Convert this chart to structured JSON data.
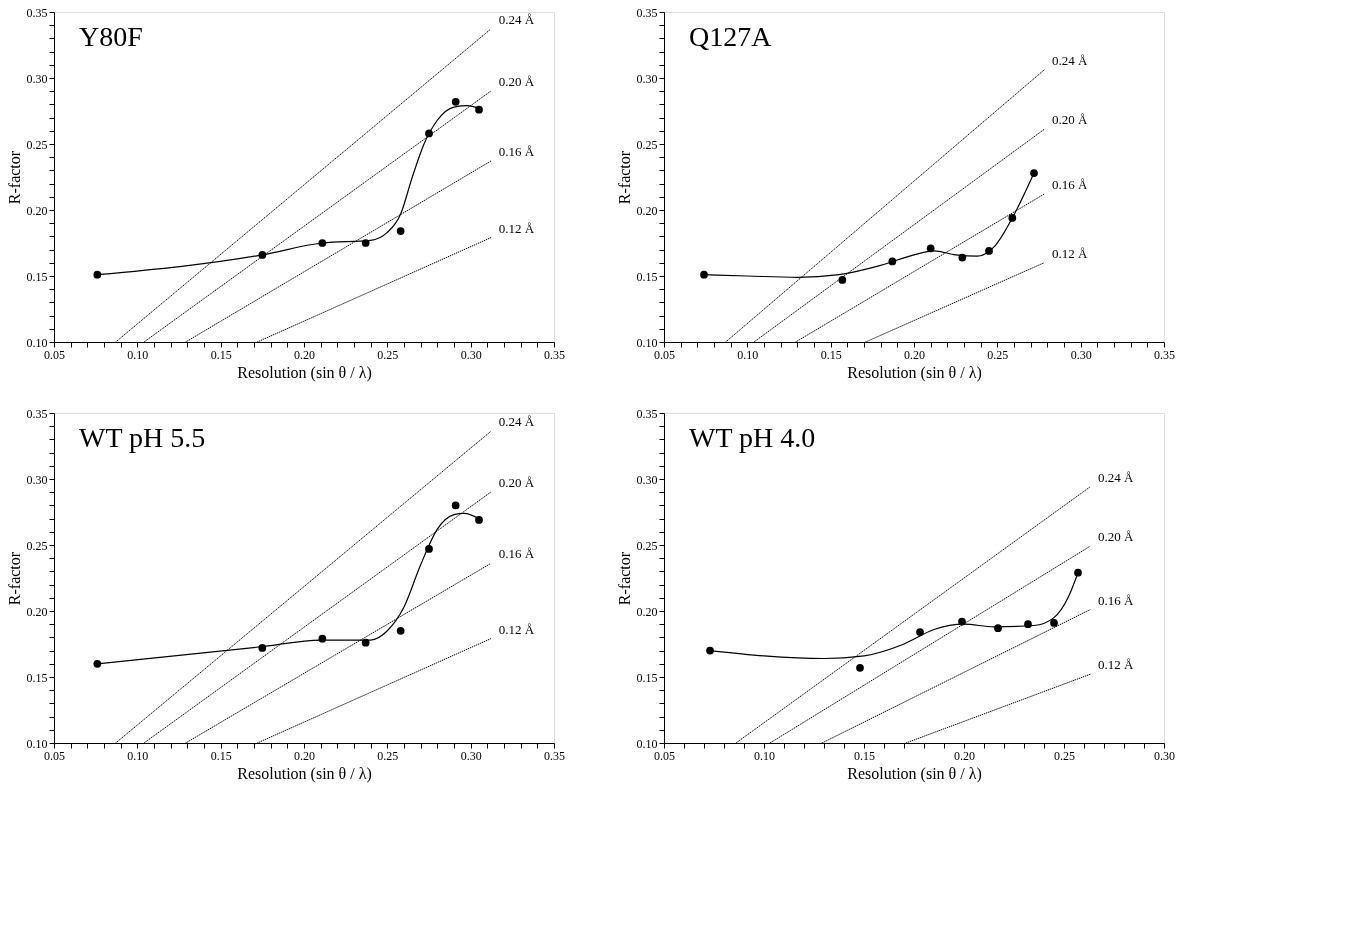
{
  "chart_data": [
    {
      "type": "scatter",
      "title": "Y80F",
      "xlabel": "Resolution (sin θ / λ)",
      "ylabel": "R-factor",
      "xlim": [
        0.05,
        0.35
      ],
      "ylim": [
        0.1,
        0.35
      ],
      "grid": false,
      "marker": "circle",
      "xticks": [
        {
          "value": 0.05,
          "label": "0.05"
        },
        {
          "value": 0.06,
          "label": null
        },
        {
          "value": 0.07,
          "label": null
        },
        {
          "value": 0.08,
          "label": null
        },
        {
          "value": 0.09,
          "label": null
        },
        {
          "value": 0.1,
          "label": "0.10"
        },
        {
          "value": 0.11,
          "label": null
        },
        {
          "value": 0.12,
          "label": null
        },
        {
          "value": 0.13,
          "label": null
        },
        {
          "value": 0.14,
          "label": null
        },
        {
          "value": 0.15,
          "label": "0.15"
        },
        {
          "value": 0.16,
          "label": null
        },
        {
          "value": 0.17,
          "label": null
        },
        {
          "value": 0.18,
          "label": null
        },
        {
          "value": 0.19,
          "label": null
        },
        {
          "value": 0.2,
          "label": "0.20"
        },
        {
          "value": 0.21,
          "label": null
        },
        {
          "value": 0.22,
          "label": null
        },
        {
          "value": 0.23,
          "label": null
        },
        {
          "value": 0.24,
          "label": null
        },
        {
          "value": 0.25,
          "label": "0.25"
        },
        {
          "value": 0.26,
          "label": null
        },
        {
          "value": 0.27,
          "label": null
        },
        {
          "value": 0.28,
          "label": null
        },
        {
          "value": 0.29,
          "label": null
        },
        {
          "value": 0.3,
          "label": "0.30"
        },
        {
          "value": 0.31,
          "label": null
        },
        {
          "value": 0.32,
          "label": null
        },
        {
          "value": 0.33,
          "label": null
        },
        {
          "value": 0.34,
          "label": null
        },
        {
          "value": 0.35,
          "label": "0.35"
        }
      ],
      "yticks": [
        {
          "value": 0.1,
          "label": "0.10"
        },
        {
          "value": 0.11,
          "label": null
        },
        {
          "value": 0.12,
          "label": null
        },
        {
          "value": 0.13,
          "label": null
        },
        {
          "value": 0.14,
          "label": null
        },
        {
          "value": 0.15,
          "label": "0.15"
        },
        {
          "value": 0.16,
          "label": null
        },
        {
          "value": 0.17,
          "label": null
        },
        {
          "value": 0.18,
          "label": null
        },
        {
          "value": 0.19,
          "label": null
        },
        {
          "value": 0.2,
          "label": "0.20"
        },
        {
          "value": 0.21,
          "label": null
        },
        {
          "value": 0.22,
          "label": null
        },
        {
          "value": 0.23,
          "label": null
        },
        {
          "value": 0.24,
          "label": null
        },
        {
          "value": 0.25,
          "label": "0.25"
        },
        {
          "value": 0.26,
          "label": null
        },
        {
          "value": 0.27,
          "label": null
        },
        {
          "value": 0.28,
          "label": null
        },
        {
          "value": 0.29,
          "label": null
        },
        {
          "value": 0.3,
          "label": "0.30"
        },
        {
          "value": 0.31,
          "label": null
        },
        {
          "value": 0.32,
          "label": null
        },
        {
          "value": 0.33,
          "label": null
        },
        {
          "value": 0.34,
          "label": null
        },
        {
          "value": 0.35,
          "label": "0.35"
        }
      ],
      "series": [
        {
          "color": "#000000",
          "x": [
            0.076,
            0.175,
            0.211,
            0.237,
            0.258,
            0.275,
            0.291,
            0.305
          ],
          "values": [
            0.151,
            0.166,
            0.175,
            0.175,
            0.184,
            0.258,
            0.282,
            0.276
          ]
        },
        {
          "type": "line",
          "color": "#000000",
          "line_style": "solid",
          "marker": "none",
          "x": [
            0.076,
            0.175,
            0.211,
            0.24,
            0.25,
            0.258,
            0.265,
            0.272,
            0.28,
            0.29,
            0.298,
            0.305
          ],
          "values": [
            0.151,
            0.166,
            0.175,
            0.177,
            0.183,
            0.197,
            0.225,
            0.25,
            0.268,
            0.278,
            0.279,
            0.277
          ]
        },
        {
          "type": "line",
          "name": "0.24 Å",
          "color": "#000000",
          "line_style": "dotted",
          "marker": "none",
          "x": [
            0.087,
            0.312
          ],
          "values": [
            0.1,
            0.337
          ]
        },
        {
          "type": "line",
          "name": "0.20 Å",
          "color": "#000000",
          "line_style": "dotted",
          "marker": "none",
          "x": [
            0.104,
            0.312
          ],
          "values": [
            0.1,
            0.29
          ]
        },
        {
          "type": "line",
          "name": "0.16 Å",
          "color": "#000000",
          "line_style": "dotted",
          "marker": "none",
          "x": [
            0.129,
            0.312
          ],
          "values": [
            0.1,
            0.237
          ]
        },
        {
          "type": "line",
          "name": "0.12 Å",
          "color": "#000000",
          "line_style": "dotted",
          "marker": "none",
          "x": [
            0.172,
            0.312
          ],
          "values": [
            0.1,
            0.179
          ]
        }
      ]
    },
    {
      "type": "scatter",
      "title": "Q127A",
      "xlabel": "Resolution (sin θ / λ)",
      "ylabel": "R-factor",
      "xlim": [
        0.05,
        0.35
      ],
      "ylim": [
        0.1,
        0.35
      ],
      "grid": false,
      "marker": "circle",
      "xticks": [
        {
          "value": 0.05,
          "label": "0.05"
        },
        {
          "value": 0.06,
          "label": null
        },
        {
          "value": 0.07,
          "label": null
        },
        {
          "value": 0.08,
          "label": null
        },
        {
          "value": 0.09,
          "label": null
        },
        {
          "value": 0.1,
          "label": "0.10"
        },
        {
          "value": 0.11,
          "label": null
        },
        {
          "value": 0.12,
          "label": null
        },
        {
          "value": 0.13,
          "label": null
        },
        {
          "value": 0.14,
          "label": null
        },
        {
          "value": 0.15,
          "label": "0.15"
        },
        {
          "value": 0.16,
          "label": null
        },
        {
          "value": 0.17,
          "label": null
        },
        {
          "value": 0.18,
          "label": null
        },
        {
          "value": 0.19,
          "label": null
        },
        {
          "value": 0.2,
          "label": "0.20"
        },
        {
          "value": 0.21,
          "label": null
        },
        {
          "value": 0.22,
          "label": null
        },
        {
          "value": 0.23,
          "label": null
        },
        {
          "value": 0.24,
          "label": null
        },
        {
          "value": 0.25,
          "label": "0.25"
        },
        {
          "value": 0.26,
          "label": null
        },
        {
          "value": 0.27,
          "label": null
        },
        {
          "value": 0.28,
          "label": null
        },
        {
          "value": 0.29,
          "label": null
        },
        {
          "value": 0.3,
          "label": "0.30"
        },
        {
          "value": 0.31,
          "label": null
        },
        {
          "value": 0.32,
          "label": null
        },
        {
          "value": 0.33,
          "label": null
        },
        {
          "value": 0.34,
          "label": null
        },
        {
          "value": 0.35,
          "label": "0.35"
        }
      ],
      "yticks": [
        {
          "value": 0.1,
          "label": "0.10"
        },
        {
          "value": 0.11,
          "label": null
        },
        {
          "value": 0.12,
          "label": null
        },
        {
          "value": 0.13,
          "label": null
        },
        {
          "value": 0.14,
          "label": null
        },
        {
          "value": 0.15,
          "label": "0.15"
        },
        {
          "value": 0.16,
          "label": null
        },
        {
          "value": 0.17,
          "label": null
        },
        {
          "value": 0.18,
          "label": null
        },
        {
          "value": 0.19,
          "label": null
        },
        {
          "value": 0.2,
          "label": "0.20"
        },
        {
          "value": 0.21,
          "label": null
        },
        {
          "value": 0.22,
          "label": null
        },
        {
          "value": 0.23,
          "label": null
        },
        {
          "value": 0.24,
          "label": null
        },
        {
          "value": 0.25,
          "label": "0.25"
        },
        {
          "value": 0.26,
          "label": null
        },
        {
          "value": 0.27,
          "label": null
        },
        {
          "value": 0.28,
          "label": null
        },
        {
          "value": 0.29,
          "label": null
        },
        {
          "value": 0.3,
          "label": "0.30"
        },
        {
          "value": 0.31,
          "label": null
        },
        {
          "value": 0.32,
          "label": null
        },
        {
          "value": 0.33,
          "label": null
        },
        {
          "value": 0.34,
          "label": null
        },
        {
          "value": 0.35,
          "label": "0.35"
        }
      ],
      "series": [
        {
          "color": "#000000",
          "x": [
            0.074,
            0.157,
            0.187,
            0.21,
            0.229,
            0.245,
            0.259,
            0.272
          ],
          "values": [
            0.151,
            0.147,
            0.161,
            0.171,
            0.164,
            0.169,
            0.194,
            0.228
          ]
        },
        {
          "type": "line",
          "color": "#000000",
          "line_style": "solid",
          "marker": "none",
          "x": [
            0.074,
            0.1,
            0.13,
            0.155,
            0.18,
            0.2,
            0.212,
            0.225,
            0.238,
            0.248,
            0.259,
            0.272
          ],
          "values": [
            0.151,
            0.15,
            0.149,
            0.151,
            0.158,
            0.166,
            0.169,
            0.166,
            0.165,
            0.172,
            0.194,
            0.228
          ]
        },
        {
          "type": "line",
          "name": "0.24 Å",
          "color": "#000000",
          "line_style": "dotted",
          "marker": "none",
          "x": [
            0.087,
            0.278
          ],
          "values": [
            0.1,
            0.306
          ]
        },
        {
          "type": "line",
          "name": "0.20 Å",
          "color": "#000000",
          "line_style": "dotted",
          "marker": "none",
          "x": [
            0.104,
            0.278
          ],
          "values": [
            0.1,
            0.261
          ]
        },
        {
          "type": "line",
          "name": "0.16 Å",
          "color": "#000000",
          "line_style": "dotted",
          "marker": "none",
          "x": [
            0.129,
            0.278
          ],
          "values": [
            0.1,
            0.212
          ]
        },
        {
          "type": "line",
          "name": "0.12 Å",
          "color": "#000000",
          "line_style": "dotted",
          "marker": "none",
          "x": [
            0.171,
            0.278
          ],
          "values": [
            0.1,
            0.16
          ]
        }
      ]
    },
    {
      "type": "scatter",
      "title": "WT pH 5.5",
      "xlabel": "Resolution (sin θ / λ)",
      "ylabel": "R-factor",
      "xlim": [
        0.05,
        0.35
      ],
      "ylim": [
        0.1,
        0.35
      ],
      "grid": false,
      "marker": "circle",
      "xticks": [
        {
          "value": 0.05,
          "label": "0.05"
        },
        {
          "value": 0.06,
          "label": null
        },
        {
          "value": 0.07,
          "label": null
        },
        {
          "value": 0.08,
          "label": null
        },
        {
          "value": 0.09,
          "label": null
        },
        {
          "value": 0.1,
          "label": "0.10"
        },
        {
          "value": 0.11,
          "label": null
        },
        {
          "value": 0.12,
          "label": null
        },
        {
          "value": 0.13,
          "label": null
        },
        {
          "value": 0.14,
          "label": null
        },
        {
          "value": 0.15,
          "label": "0.15"
        },
        {
          "value": 0.16,
          "label": null
        },
        {
          "value": 0.17,
          "label": null
        },
        {
          "value": 0.18,
          "label": null
        },
        {
          "value": 0.19,
          "label": null
        },
        {
          "value": 0.2,
          "label": "0.20"
        },
        {
          "value": 0.21,
          "label": null
        },
        {
          "value": 0.22,
          "label": null
        },
        {
          "value": 0.23,
          "label": null
        },
        {
          "value": 0.24,
          "label": null
        },
        {
          "value": 0.25,
          "label": "0.25"
        },
        {
          "value": 0.26,
          "label": null
        },
        {
          "value": 0.27,
          "label": null
        },
        {
          "value": 0.28,
          "label": null
        },
        {
          "value": 0.29,
          "label": null
        },
        {
          "value": 0.3,
          "label": "0.30"
        },
        {
          "value": 0.31,
          "label": null
        },
        {
          "value": 0.32,
          "label": null
        },
        {
          "value": 0.33,
          "label": null
        },
        {
          "value": 0.34,
          "label": null
        },
        {
          "value": 0.35,
          "label": "0.35"
        }
      ],
      "yticks": [
        {
          "value": 0.1,
          "label": "0.10"
        },
        {
          "value": 0.11,
          "label": null
        },
        {
          "value": 0.12,
          "label": null
        },
        {
          "value": 0.13,
          "label": null
        },
        {
          "value": 0.14,
          "label": null
        },
        {
          "value": 0.15,
          "label": "0.15"
        },
        {
          "value": 0.16,
          "label": null
        },
        {
          "value": 0.17,
          "label": null
        },
        {
          "value": 0.18,
          "label": null
        },
        {
          "value": 0.19,
          "label": null
        },
        {
          "value": 0.2,
          "label": "0.20"
        },
        {
          "value": 0.21,
          "label": null
        },
        {
          "value": 0.22,
          "label": null
        },
        {
          "value": 0.23,
          "label": null
        },
        {
          "value": 0.24,
          "label": null
        },
        {
          "value": 0.25,
          "label": "0.25"
        },
        {
          "value": 0.26,
          "label": null
        },
        {
          "value": 0.27,
          "label": null
        },
        {
          "value": 0.28,
          "label": null
        },
        {
          "value": 0.29,
          "label": null
        },
        {
          "value": 0.3,
          "label": "0.30"
        },
        {
          "value": 0.31,
          "label": null
        },
        {
          "value": 0.32,
          "label": null
        },
        {
          "value": 0.33,
          "label": null
        },
        {
          "value": 0.34,
          "label": null
        },
        {
          "value": 0.35,
          "label": "0.35"
        }
      ],
      "series": [
        {
          "color": "#000000",
          "x": [
            0.076,
            0.175,
            0.211,
            0.237,
            0.258,
            0.275,
            0.291,
            0.305
          ],
          "values": [
            0.16,
            0.172,
            0.179,
            0.176,
            0.185,
            0.247,
            0.28,
            0.269
          ]
        },
        {
          "type": "line",
          "color": "#000000",
          "line_style": "solid",
          "marker": "none",
          "x": [
            0.076,
            0.175,
            0.21,
            0.24,
            0.25,
            0.26,
            0.27,
            0.28,
            0.29,
            0.296,
            0.305
          ],
          "values": [
            0.16,
            0.173,
            0.178,
            0.178,
            0.185,
            0.203,
            0.235,
            0.262,
            0.273,
            0.274,
            0.27
          ]
        },
        {
          "type": "line",
          "name": "0.24 Å",
          "color": "#000000",
          "line_style": "dotted",
          "marker": "none",
          "x": [
            0.087,
            0.312
          ],
          "values": [
            0.1,
            0.336
          ]
        },
        {
          "type": "line",
          "name": "0.20 Å",
          "color": "#000000",
          "line_style": "dotted",
          "marker": "none",
          "x": [
            0.104,
            0.312
          ],
          "values": [
            0.1,
            0.29
          ]
        },
        {
          "type": "line",
          "name": "0.16 Å",
          "color": "#000000",
          "line_style": "dotted",
          "marker": "none",
          "x": [
            0.129,
            0.312
          ],
          "values": [
            0.1,
            0.236
          ]
        },
        {
          "type": "line",
          "name": "0.12 Å",
          "color": "#000000",
          "line_style": "dotted",
          "marker": "none",
          "x": [
            0.172,
            0.312
          ],
          "values": [
            0.1,
            0.179
          ]
        }
      ]
    },
    {
      "type": "scatter",
      "title": "WT pH 4.0",
      "xlabel": "Resolution (sin θ / λ)",
      "ylabel": "R-factor",
      "xlim": [
        0.05,
        0.3
      ],
      "ylim": [
        0.1,
        0.35
      ],
      "grid": false,
      "marker": "circle",
      "xticks": [
        {
          "value": 0.05,
          "label": "0.05"
        },
        {
          "value": 0.06,
          "label": null
        },
        {
          "value": 0.07,
          "label": null
        },
        {
          "value": 0.08,
          "label": null
        },
        {
          "value": 0.09,
          "label": null
        },
        {
          "value": 0.1,
          "label": "0.10"
        },
        {
          "value": 0.11,
          "label": null
        },
        {
          "value": 0.12,
          "label": null
        },
        {
          "value": 0.13,
          "label": null
        },
        {
          "value": 0.14,
          "label": null
        },
        {
          "value": 0.15,
          "label": "0.15"
        },
        {
          "value": 0.16,
          "label": null
        },
        {
          "value": 0.17,
          "label": null
        },
        {
          "value": 0.18,
          "label": null
        },
        {
          "value": 0.19,
          "label": null
        },
        {
          "value": 0.2,
          "label": "0.20"
        },
        {
          "value": 0.21,
          "label": null
        },
        {
          "value": 0.22,
          "label": null
        },
        {
          "value": 0.23,
          "label": null
        },
        {
          "value": 0.24,
          "label": null
        },
        {
          "value": 0.25,
          "label": "0.25"
        },
        {
          "value": 0.26,
          "label": null
        },
        {
          "value": 0.27,
          "label": null
        },
        {
          "value": 0.28,
          "label": null
        },
        {
          "value": 0.29,
          "label": null
        },
        {
          "value": 0.3,
          "label": "0.30"
        }
      ],
      "yticks": [
        {
          "value": 0.1,
          "label": "0.10"
        },
        {
          "value": 0.11,
          "label": null
        },
        {
          "value": 0.12,
          "label": null
        },
        {
          "value": 0.13,
          "label": null
        },
        {
          "value": 0.14,
          "label": null
        },
        {
          "value": 0.15,
          "label": "0.15"
        },
        {
          "value": 0.16,
          "label": null
        },
        {
          "value": 0.17,
          "label": null
        },
        {
          "value": 0.18,
          "label": null
        },
        {
          "value": 0.19,
          "label": null
        },
        {
          "value": 0.2,
          "label": "0.20"
        },
        {
          "value": 0.21,
          "label": null
        },
        {
          "value": 0.22,
          "label": null
        },
        {
          "value": 0.23,
          "label": null
        },
        {
          "value": 0.24,
          "label": null
        },
        {
          "value": 0.25,
          "label": "0.25"
        },
        {
          "value": 0.26,
          "label": null
        },
        {
          "value": 0.27,
          "label": null
        },
        {
          "value": 0.28,
          "label": null
        },
        {
          "value": 0.29,
          "label": null
        },
        {
          "value": 0.3,
          "label": "0.30"
        },
        {
          "value": 0.31,
          "label": null
        },
        {
          "value": 0.32,
          "label": null
        },
        {
          "value": 0.33,
          "label": null
        },
        {
          "value": 0.34,
          "label": null
        },
        {
          "value": 0.35,
          "label": "0.35"
        }
      ],
      "series": [
        {
          "color": "#000000",
          "x": [
            0.073,
            0.148,
            0.178,
            0.199,
            0.217,
            0.232,
            0.245,
            0.257
          ],
          "values": [
            0.17,
            0.157,
            0.184,
            0.192,
            0.187,
            0.19,
            0.191,
            0.229
          ]
        },
        {
          "type": "line",
          "color": "#000000",
          "line_style": "solid",
          "marker": "none",
          "x": [
            0.073,
            0.1,
            0.13,
            0.15,
            0.17,
            0.185,
            0.2,
            0.215,
            0.235,
            0.245,
            0.252,
            0.257
          ],
          "values": [
            0.17,
            0.166,
            0.164,
            0.166,
            0.175,
            0.186,
            0.19,
            0.188,
            0.189,
            0.195,
            0.21,
            0.229
          ]
        },
        {
          "type": "line",
          "name": "0.24 Å",
          "color": "#000000",
          "line_style": "dotted",
          "marker": "none",
          "x": [
            0.086,
            0.263
          ],
          "values": [
            0.1,
            0.294
          ]
        },
        {
          "type": "line",
          "name": "0.20 Å",
          "color": "#000000",
          "line_style": "dotted",
          "marker": "none",
          "x": [
            0.103,
            0.263
          ],
          "values": [
            0.1,
            0.249
          ]
        },
        {
          "type": "line",
          "name": "0.16 Å",
          "color": "#000000",
          "line_style": "dotted",
          "marker": "none",
          "x": [
            0.129,
            0.263
          ],
          "values": [
            0.1,
            0.201
          ]
        },
        {
          "type": "line",
          "name": "0.12 Å",
          "color": "#000000",
          "line_style": "dotted",
          "marker": "none",
          "x": [
            0.171,
            0.263
          ],
          "values": [
            0.1,
            0.152
          ]
        }
      ]
    }
  ]
}
